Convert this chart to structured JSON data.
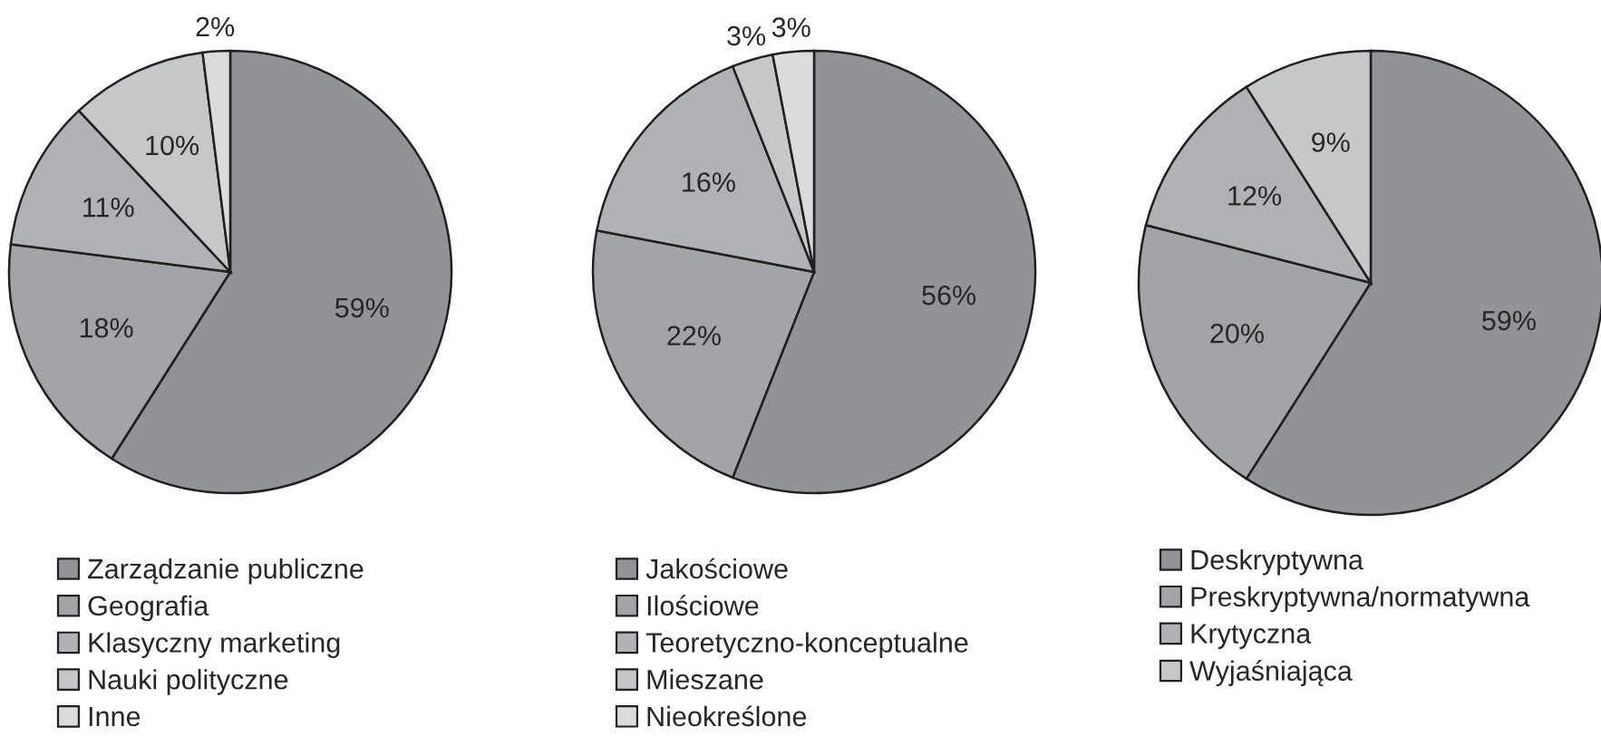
{
  "chart_data": [
    {
      "type": "pie",
      "categories": [
        "Zarządzanie publiczne",
        "Geografia",
        "Klasyczny marketing",
        "Nauki polityczne",
        "Inne"
      ],
      "values": [
        59,
        18,
        11,
        10,
        2
      ],
      "value_labels": [
        "59%",
        "18%",
        "11%",
        "10%",
        "2%"
      ],
      "colors": [
        "#929396",
        "#a3a4a7",
        "#b1b2b5",
        "#c6c7c9",
        "#dadbdd"
      ],
      "legend": "bottom"
    },
    {
      "type": "pie",
      "categories": [
        "Jakościowe",
        "Ilościowe",
        "Teoretyczno-konceptualne",
        "Mieszane",
        "Nieokreślone"
      ],
      "values": [
        56,
        22,
        16,
        3,
        3
      ],
      "value_labels": [
        "56%",
        "22%",
        "16%",
        "3%",
        "3%"
      ],
      "colors": [
        "#929396",
        "#a3a4a7",
        "#b1b2b5",
        "#c6c7c9",
        "#dadbdd"
      ],
      "legend": "bottom"
    },
    {
      "type": "pie",
      "categories": [
        "Deskryptywna",
        "Preskryptywna/normatywna",
        "Krytyczna",
        "Wyjaśniająca"
      ],
      "values": [
        59,
        20,
        12,
        9
      ],
      "value_labels": [
        "59%",
        "20%",
        "12%",
        "9%"
      ],
      "colors": [
        "#929396",
        "#a3a4a7",
        "#b1b2b5",
        "#c6c7c9"
      ],
      "legend": "bottom"
    }
  ]
}
